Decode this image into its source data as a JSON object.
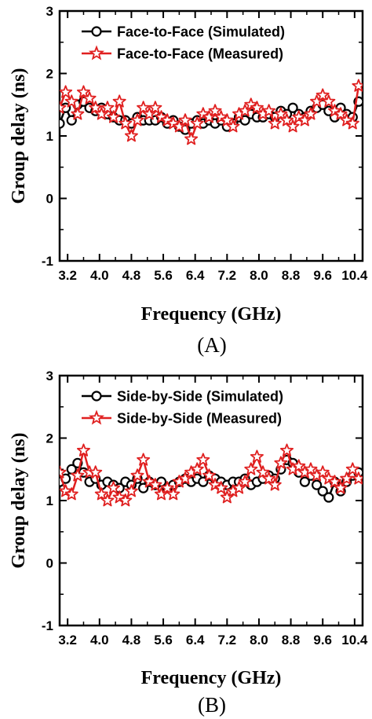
{
  "chart_data": [
    {
      "type": "line",
      "panel_label": "(A)",
      "xlabel": "Frequency (GHz)",
      "ylabel": "Group delay (ns)",
      "xlim": [
        3.0,
        10.6
      ],
      "ylim": [
        -1,
        3
      ],
      "xticks": [
        3.2,
        4.0,
        4.8,
        5.6,
        6.4,
        7.2,
        8.0,
        8.8,
        9.6,
        10.4
      ],
      "xtick_labels": [
        "3.2",
        "4.0",
        "4.8",
        "5.6",
        "6.4",
        "7.2",
        "8.0",
        "8.8",
        "9.6",
        "10.4"
      ],
      "yticks": [
        -1,
        0,
        1,
        2,
        3
      ],
      "ytick_labels": [
        "-1",
        "0",
        "1",
        "2",
        "3"
      ],
      "legend_position": "top-center",
      "grid": false,
      "series": [
        {
          "name": "Face-to-Face (Simulated)",
          "color": "#000000",
          "marker": "circle",
          "x": [
            3.0,
            3.15,
            3.3,
            3.45,
            3.6,
            3.75,
            3.9,
            4.05,
            4.2,
            4.35,
            4.5,
            4.65,
            4.8,
            4.95,
            5.1,
            5.25,
            5.4,
            5.55,
            5.7,
            5.85,
            6.0,
            6.15,
            6.3,
            6.45,
            6.6,
            6.75,
            6.9,
            7.05,
            7.2,
            7.35,
            7.5,
            7.65,
            7.8,
            7.95,
            8.1,
            8.25,
            8.4,
            8.55,
            8.7,
            8.85,
            9.0,
            9.15,
            9.3,
            9.45,
            9.6,
            9.75,
            9.9,
            10.05,
            10.2,
            10.35,
            10.5
          ],
          "y": [
            1.2,
            1.45,
            1.25,
            1.5,
            1.55,
            1.45,
            1.4,
            1.45,
            1.35,
            1.3,
            1.25,
            1.25,
            1.2,
            1.3,
            1.25,
            1.25,
            1.25,
            1.3,
            1.2,
            1.25,
            1.15,
            1.1,
            1.2,
            1.25,
            1.2,
            1.25,
            1.2,
            1.25,
            1.15,
            1.2,
            1.3,
            1.25,
            1.35,
            1.3,
            1.3,
            1.35,
            1.3,
            1.4,
            1.35,
            1.45,
            1.35,
            1.3,
            1.4,
            1.45,
            1.5,
            1.4,
            1.3,
            1.45,
            1.35,
            1.3,
            1.55
          ]
        },
        {
          "name": "Face-to-Face (Measured)",
          "color": "#e02020",
          "marker": "star",
          "x": [
            3.0,
            3.15,
            3.3,
            3.45,
            3.6,
            3.75,
            3.9,
            4.05,
            4.2,
            4.35,
            4.5,
            4.65,
            4.8,
            4.95,
            5.1,
            5.25,
            5.4,
            5.55,
            5.7,
            5.85,
            6.0,
            6.15,
            6.3,
            6.45,
            6.6,
            6.75,
            6.9,
            7.05,
            7.2,
            7.35,
            7.5,
            7.65,
            7.8,
            7.95,
            8.1,
            8.25,
            8.4,
            8.55,
            8.7,
            8.85,
            9.0,
            9.15,
            9.3,
            9.45,
            9.6,
            9.75,
            9.9,
            10.05,
            10.2,
            10.35,
            10.5
          ],
          "y": [
            1.45,
            1.7,
            1.55,
            1.35,
            1.7,
            1.6,
            1.45,
            1.35,
            1.45,
            1.3,
            1.55,
            1.2,
            1.0,
            1.25,
            1.45,
            1.35,
            1.45,
            1.3,
            1.25,
            1.2,
            1.15,
            1.25,
            0.95,
            1.2,
            1.35,
            1.3,
            1.4,
            1.3,
            1.25,
            1.15,
            1.35,
            1.4,
            1.5,
            1.45,
            1.35,
            1.4,
            1.2,
            1.35,
            1.25,
            1.15,
            1.3,
            1.25,
            1.35,
            1.55,
            1.65,
            1.55,
            1.4,
            1.35,
            1.25,
            1.2,
            1.8
          ]
        }
      ]
    },
    {
      "type": "line",
      "panel_label": "(B)",
      "xlabel": "Frequency (GHz)",
      "ylabel": "Group delay (ns)",
      "xlim": [
        3.0,
        10.6
      ],
      "ylim": [
        -1,
        3
      ],
      "xticks": [
        3.2,
        4.0,
        4.8,
        5.6,
        6.4,
        7.2,
        8.0,
        8.8,
        9.6,
        10.4
      ],
      "xtick_labels": [
        "3.2",
        "4.0",
        "4.8",
        "5.6",
        "6.4",
        "7.2",
        "8.0",
        "8.8",
        "9.6",
        "10.4"
      ],
      "yticks": [
        -1,
        0,
        1,
        2,
        3
      ],
      "ytick_labels": [
        "-1",
        "0",
        "1",
        "2",
        "3"
      ],
      "legend_position": "top-center",
      "grid": false,
      "series": [
        {
          "name": "Side-by-Side (Simulated)",
          "color": "#000000",
          "marker": "circle",
          "x": [
            3.0,
            3.15,
            3.3,
            3.45,
            3.6,
            3.75,
            3.9,
            4.05,
            4.2,
            4.35,
            4.5,
            4.65,
            4.8,
            4.95,
            5.1,
            5.25,
            5.4,
            5.55,
            5.7,
            5.85,
            6.0,
            6.15,
            6.3,
            6.45,
            6.6,
            6.75,
            6.9,
            7.05,
            7.2,
            7.35,
            7.5,
            7.65,
            7.8,
            7.95,
            8.1,
            8.25,
            8.4,
            8.55,
            8.7,
            8.85,
            9.0,
            9.15,
            9.3,
            9.45,
            9.6,
            9.75,
            9.9,
            10.05,
            10.2,
            10.35,
            10.5
          ],
          "y": [
            1.3,
            1.35,
            1.5,
            1.6,
            1.45,
            1.3,
            1.35,
            1.25,
            1.3,
            1.25,
            1.2,
            1.3,
            1.25,
            1.35,
            1.2,
            1.3,
            1.25,
            1.3,
            1.2,
            1.25,
            1.3,
            1.35,
            1.3,
            1.35,
            1.3,
            1.4,
            1.35,
            1.3,
            1.25,
            1.3,
            1.3,
            1.35,
            1.25,
            1.3,
            1.35,
            1.4,
            1.35,
            1.5,
            1.65,
            1.6,
            1.45,
            1.3,
            1.4,
            1.25,
            1.15,
            1.05,
            1.3,
            1.15,
            1.3,
            1.4,
            1.45
          ]
        },
        {
          "name": "Side-by-Side (Measured)",
          "color": "#e02020",
          "marker": "star",
          "x": [
            3.0,
            3.15,
            3.3,
            3.45,
            3.6,
            3.75,
            3.9,
            4.05,
            4.2,
            4.35,
            4.5,
            4.65,
            4.8,
            4.95,
            5.1,
            5.25,
            5.4,
            5.55,
            5.7,
            5.85,
            6.0,
            6.15,
            6.3,
            6.45,
            6.6,
            6.75,
            6.9,
            7.05,
            7.2,
            7.35,
            7.5,
            7.65,
            7.8,
            7.95,
            8.1,
            8.25,
            8.4,
            8.55,
            8.7,
            8.85,
            9.0,
            9.15,
            9.3,
            9.45,
            9.6,
            9.75,
            9.9,
            10.05,
            10.2,
            10.35,
            10.5
          ],
          "y": [
            1.45,
            1.15,
            1.1,
            1.4,
            1.8,
            1.45,
            1.45,
            1.1,
            1.0,
            1.2,
            1.05,
            1.0,
            1.15,
            1.4,
            1.65,
            1.3,
            1.25,
            1.1,
            1.2,
            1.1,
            1.3,
            1.35,
            1.45,
            1.5,
            1.65,
            1.4,
            1.25,
            1.2,
            1.05,
            1.15,
            1.2,
            1.3,
            1.5,
            1.7,
            1.45,
            1.35,
            1.25,
            1.6,
            1.8,
            1.5,
            1.55,
            1.45,
            1.5,
            1.4,
            1.45,
            1.35,
            1.3,
            1.2,
            1.35,
            1.5,
            1.35
          ]
        }
      ]
    }
  ]
}
